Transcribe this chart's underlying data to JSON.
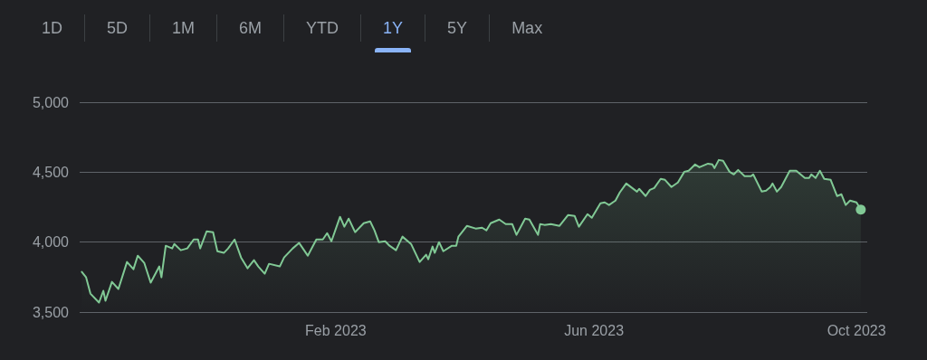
{
  "chart_data": {
    "type": "area",
    "annotations": [
      "1D",
      "5D",
      "1M",
      "6M",
      "YTD",
      "1Y",
      "5Y",
      "Max"
    ],
    "x": [
      "2022-10-06",
      "2022-10-08",
      "2022-10-10",
      "2022-10-14",
      "2022-10-16",
      "2022-10-17",
      "2022-10-20",
      "2022-10-23",
      "2022-10-27",
      "2022-10-30",
      "2022-11-01",
      "2022-11-04",
      "2022-11-07",
      "2022-11-11",
      "2022-11-12",
      "2022-11-14",
      "2022-11-17",
      "2022-11-18",
      "2022-11-21",
      "2022-11-24",
      "2022-11-27",
      "2022-11-29",
      "2022-11-30",
      "2022-12-03",
      "2022-12-06",
      "2022-12-08",
      "2022-12-11",
      "2022-12-13",
      "2022-12-16",
      "2022-12-19",
      "2022-12-22",
      "2022-12-25",
      "2022-12-27",
      "2022-12-30",
      "2023-01-01",
      "2023-01-06",
      "2023-01-08",
      "2023-01-12",
      "2023-01-15",
      "2023-01-19",
      "2023-01-23",
      "2023-01-26",
      "2023-01-28",
      "2023-01-30",
      "2023-02-03",
      "2023-02-05",
      "2023-02-07",
      "2023-02-10",
      "2023-02-14",
      "2023-02-17",
      "2023-02-19",
      "2023-02-21",
      "2023-02-24",
      "2023-02-26",
      "2023-03-01",
      "2023-03-04",
      "2023-03-08",
      "2023-03-12",
      "2023-03-15",
      "2023-03-16",
      "2023-03-18",
      "2023-03-19",
      "2023-03-21",
      "2023-03-23",
      "2023-03-27",
      "2023-03-29",
      "2023-03-30",
      "2023-04-03",
      "2023-04-07",
      "2023-04-10",
      "2023-04-12",
      "2023-04-14",
      "2023-04-18",
      "2023-04-21",
      "2023-04-24",
      "2023-04-26",
      "2023-04-30",
      "2023-05-02",
      "2023-05-06",
      "2023-05-07",
      "2023-05-09",
      "2023-05-12",
      "2023-05-16",
      "2023-05-20",
      "2023-05-23",
      "2023-05-25",
      "2023-05-29",
      "2023-05-31",
      "2023-06-04",
      "2023-06-06",
      "2023-06-08",
      "2023-06-11",
      "2023-06-13",
      "2023-06-16",
      "2023-06-21",
      "2023-06-22",
      "2023-06-25",
      "2023-06-27",
      "2023-06-29",
      "2023-07-02",
      "2023-07-04",
      "2023-07-07",
      "2023-07-10",
      "2023-07-13",
      "2023-07-15",
      "2023-07-18",
      "2023-07-20",
      "2023-07-24",
      "2023-07-26",
      "2023-07-27",
      "2023-07-29",
      "2023-07-31",
      "2023-08-03",
      "2023-08-05",
      "2023-08-07",
      "2023-08-10",
      "2023-08-13",
      "2023-08-14",
      "2023-08-18",
      "2023-08-20",
      "2023-08-22",
      "2023-08-23",
      "2023-08-25",
      "2023-08-27",
      "2023-08-31",
      "2023-09-03",
      "2023-09-07",
      "2023-09-09",
      "2023-09-10",
      "2023-09-12",
      "2023-09-14",
      "2023-09-16",
      "2023-09-19",
      "2023-09-22",
      "2023-09-24",
      "2023-09-26",
      "2023-09-28",
      "2023-10-01",
      "2023-10-03"
    ],
    "series": [
      {
        "color": "#81c995",
        "values": [
          3787,
          3748,
          3632,
          3568,
          3652,
          3581,
          3716,
          3665,
          3858,
          3806,
          3903,
          3852,
          3710,
          3826,
          3748,
          3974,
          3955,
          3987,
          3942,
          3955,
          4019,
          4019,
          3955,
          4077,
          4071,
          3935,
          3923,
          3955,
          4019,
          3890,
          3813,
          3871,
          3826,
          3774,
          3845,
          3826,
          3890,
          3955,
          3994,
          3903,
          4019,
          4019,
          4064,
          4006,
          4181,
          4110,
          4168,
          4071,
          4135,
          4148,
          4084,
          4000,
          4006,
          3974,
          3942,
          4039,
          3987,
          3858,
          3910,
          3877,
          3968,
          3923,
          4000,
          3935,
          3974,
          3974,
          4039,
          4116,
          4097,
          4103,
          4084,
          4135,
          4161,
          4129,
          4129,
          4052,
          4168,
          4161,
          4052,
          4129,
          4123,
          4129,
          4116,
          4194,
          4187,
          4110,
          4200,
          4174,
          4277,
          4284,
          4265,
          4297,
          4355,
          4419,
          4361,
          4381,
          4329,
          4374,
          4387,
          4452,
          4445,
          4394,
          4426,
          4503,
          4510,
          4555,
          4535,
          4561,
          4555,
          4529,
          4587,
          4581,
          4503,
          4484,
          4516,
          4471,
          4471,
          4484,
          4361,
          4368,
          4394,
          4419,
          4361,
          4394,
          4510,
          4510,
          4458,
          4458,
          4484,
          4458,
          4510,
          4452,
          4445,
          4329,
          4342,
          4265,
          4297,
          4284,
          4232
        ]
      }
    ],
    "xlim": [
      "2022-10-05",
      "2023-10-06"
    ],
    "xticks": [
      {
        "value": "2023-02-01",
        "label": "Feb 2023"
      },
      {
        "value": "2023-06-01",
        "label": "Jun 2023"
      },
      {
        "value": "2023-10-01",
        "label": "Oct 2023"
      }
    ],
    "ylim": [
      3500,
      5000
    ],
    "yticks": [
      {
        "value": 3500,
        "label": "3,500"
      },
      {
        "value": 4000,
        "label": "4,000"
      },
      {
        "value": 4500,
        "label": "4,500"
      },
      {
        "value": 5000,
        "label": "5,000"
      }
    ],
    "grid": "y",
    "marker": "none",
    "line_style": "solid"
  }
}
